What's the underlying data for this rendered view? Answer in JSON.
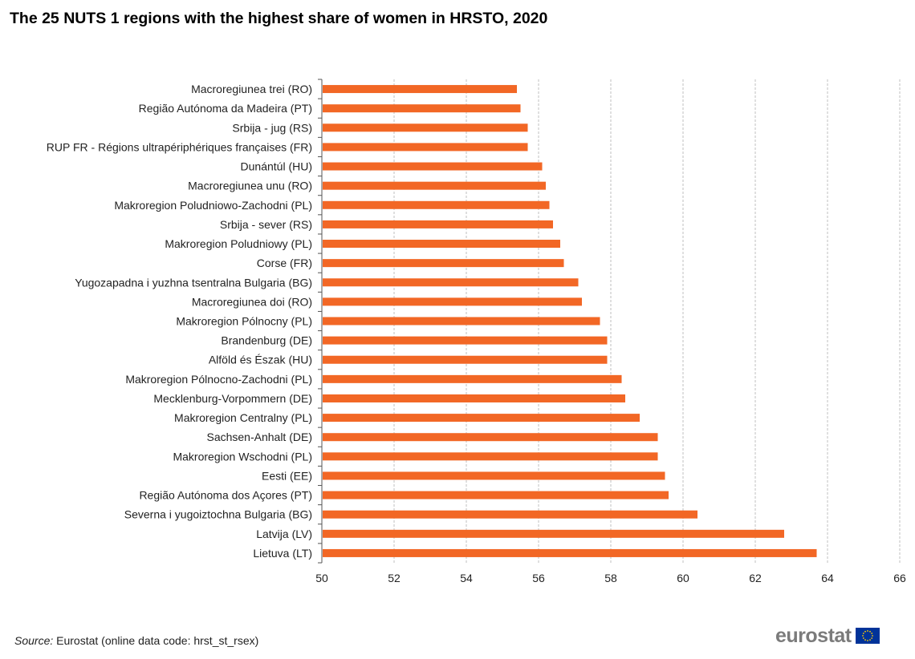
{
  "title": "The 25 NUTS 1 regions with the highest share of women in HRSTO, 2020",
  "source": {
    "label": "Source:",
    "text": "Eurostat (online data code: hrst_st_rsex)"
  },
  "logo": {
    "text": "eurostat",
    "icon": "eu-flag-icon"
  },
  "colors": {
    "bar": "#f26725",
    "grid": "#bfbfbf",
    "axis": "#555555",
    "flag_blue": "#003399",
    "flag_star": "#ffcc00"
  },
  "chart_data": {
    "type": "bar",
    "orientation": "horizontal",
    "categories": [
      "Macroregiunea trei (RO)",
      "Região Autónoma da Madeira (PT)",
      "Srbija - jug (RS)",
      "RUP FR - Régions ultrapériphériques françaises (FR)",
      "Dunántúl (HU)",
      "Macroregiunea unu (RO)",
      "Makroregion Poludniowo-Zachodni (PL)",
      "Srbija - sever (RS)",
      "Makroregion Poludniowy (PL)",
      "Corse (FR)",
      "Yugozapadna i yuzhna tsentralna Bulgaria (BG)",
      "Macroregiunea doi (RO)",
      "Makroregion Pólnocny (PL)",
      "Brandenburg (DE)",
      "Alföld és Észak (HU)",
      "Makroregion Pólnocno-Zachodni (PL)",
      "Mecklenburg-Vorpommern (DE)",
      "Makroregion Centralny (PL)",
      "Sachsen-Anhalt (DE)",
      "Makroregion Wschodni (PL)",
      "Eesti (EE)",
      "Região Autónoma dos Açores (PT)",
      "Severna i yugoiztochna Bulgaria (BG)",
      "Latvija (LV)",
      "Lietuva (LT)"
    ],
    "values": [
      55.4,
      55.5,
      55.7,
      55.7,
      56.1,
      56.2,
      56.3,
      56.4,
      56.6,
      56.7,
      57.1,
      57.2,
      57.7,
      57.9,
      57.9,
      58.3,
      58.4,
      58.8,
      59.3,
      59.3,
      59.5,
      59.6,
      60.4,
      62.8,
      63.7
    ],
    "xlim": [
      50,
      66
    ],
    "xticks": [
      "50",
      "52",
      "54",
      "56",
      "58",
      "60",
      "62",
      "64",
      "66"
    ],
    "grid": true,
    "legend": "none"
  }
}
